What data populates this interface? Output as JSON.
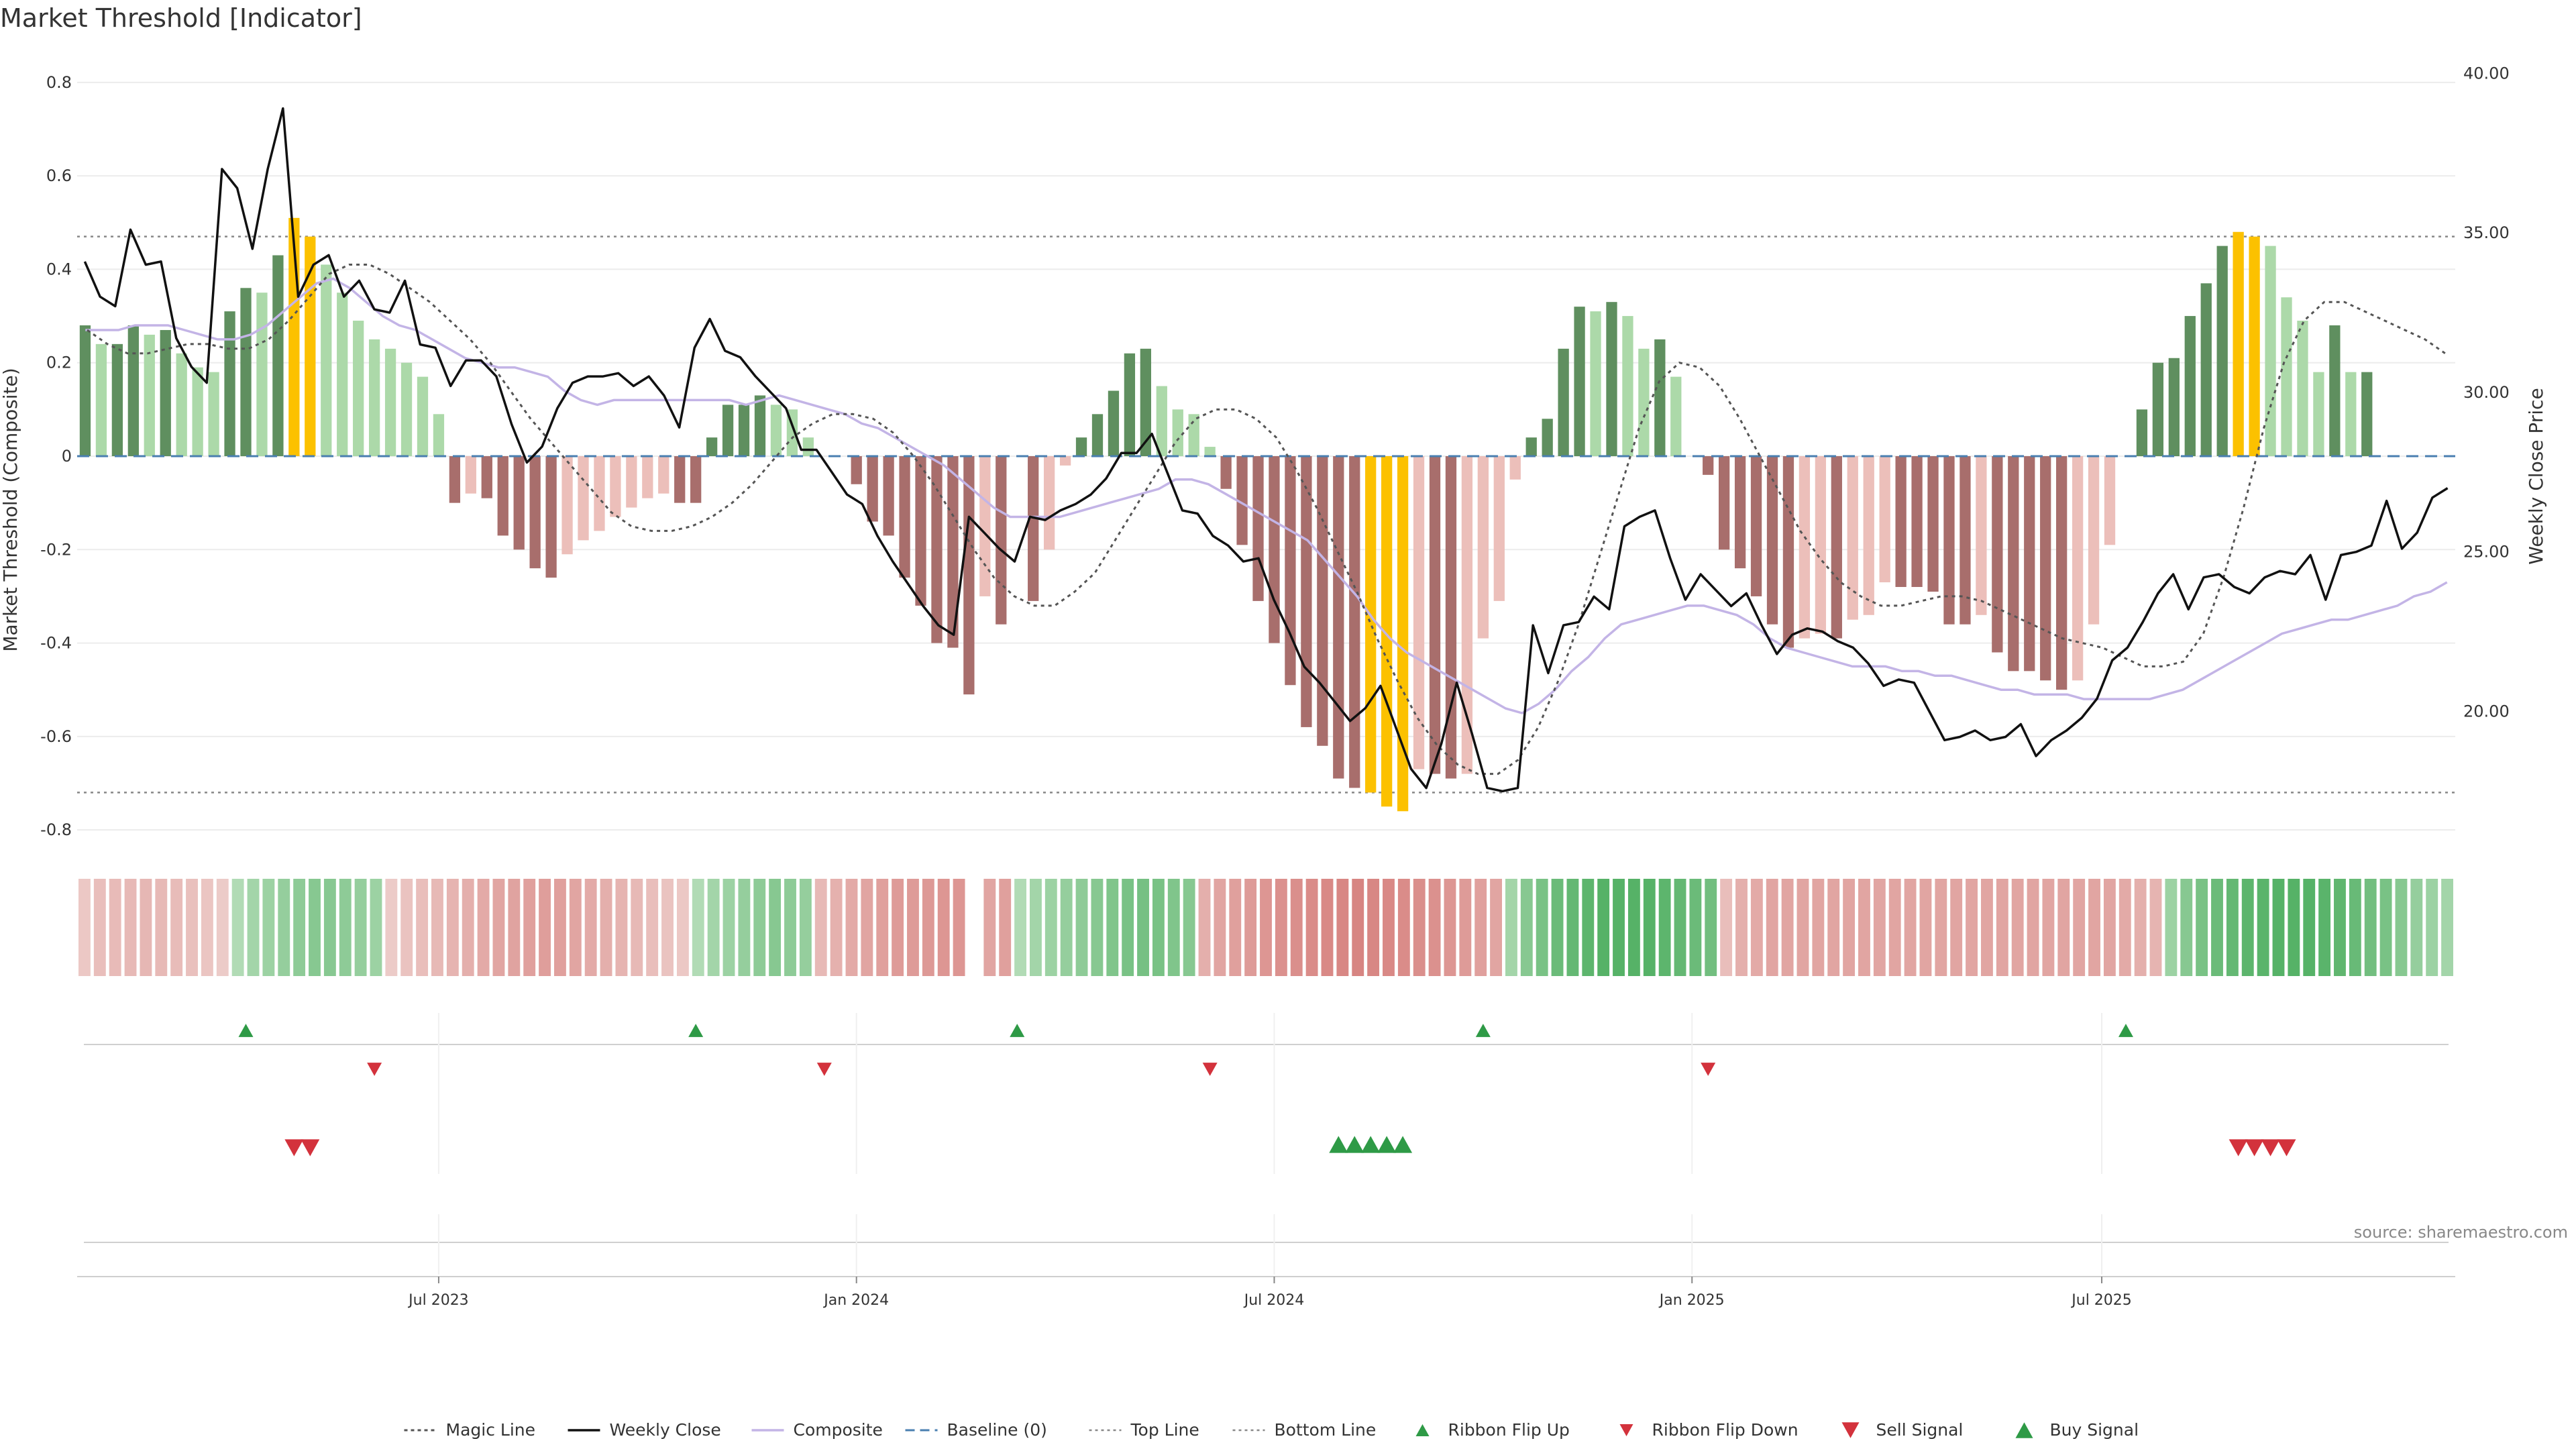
{
  "title": "Market Threshold [Indicator]",
  "source": "source: sharemaestro.com",
  "colors": {
    "strong_green": "#5f8f5f",
    "light_green": "#acd9a9",
    "strong_red": "#a86e6c",
    "light_red": "#ecbfba",
    "extreme": "#fcc100",
    "close": "#111111",
    "composite": "#c3b4e6",
    "magic": "#555555",
    "baseline": "#4a7fb0",
    "threshold": "#888888",
    "flip_up": "#2e9a46",
    "flip_down": "#d3323c"
  },
  "chart_data": {
    "type": "bar",
    "title": "Market Threshold [Indicator]",
    "ylabel": "Market Threshold (Composite)",
    "y2label": "Weekly Close Price",
    "ylim": [
      -0.84,
      0.84
    ],
    "y2lim": [
      15.7,
      40.3
    ],
    "yticks": [
      "0.8",
      "0.6",
      "0.4",
      "0.2",
      "0",
      "-0.2",
      "-0.4",
      "-0.6",
      "-0.8"
    ],
    "y2ticks": [
      "40.00",
      "35.00",
      "30.00",
      "25.00",
      "20.00"
    ],
    "xticks": [
      {
        "label": "Jul 2023",
        "week": 22
      },
      {
        "label": "Jan 2024",
        "week": 48
      },
      {
        "label": "Jul 2024",
        "week": 74
      },
      {
        "label": "Jan 2025",
        "week": 100
      },
      {
        "label": "Jul 2025",
        "week": 125.5
      }
    ],
    "top_line": 0.47,
    "bottom_line": -0.72,
    "baseline": 0,
    "bars": [
      0.28,
      0.24,
      0.24,
      0.28,
      0.26,
      0.27,
      0.22,
      0.19,
      0.18,
      0.31,
      0.36,
      0.35,
      0.43,
      0.51,
      0.47,
      0.41,
      0.35,
      0.29,
      0.25,
      0.23,
      0.2,
      0.17,
      0.09,
      -0.1,
      -0.08,
      -0.09,
      -0.17,
      -0.2,
      -0.24,
      -0.26,
      -0.21,
      -0.18,
      -0.16,
      -0.13,
      -0.11,
      -0.09,
      -0.08,
      -0.1,
      -0.1,
      0.04,
      0.11,
      0.11,
      0.13,
      0.11,
      0.1,
      0.04,
      0,
      0,
      -0.06,
      -0.14,
      -0.17,
      -0.26,
      -0.32,
      -0.4,
      -0.41,
      -0.51,
      -0.3,
      -0.36,
      0,
      -0.31,
      -0.2,
      -0.02,
      0.04,
      0.09,
      0.14,
      0.22,
      0.23,
      0.15,
      0.1,
      0.09,
      0.02,
      -0.07,
      -0.19,
      -0.31,
      -0.4,
      -0.49,
      -0.58,
      -0.62,
      -0.69,
      -0.71,
      -0.72,
      -0.75,
      -0.76,
      -0.67,
      -0.68,
      -0.69,
      -0.68,
      -0.39,
      -0.31,
      -0.05,
      0.04,
      0.08,
      0.23,
      0.32,
      0.31,
      0.33,
      0.3,
      0.23,
      0.25,
      0.17,
      0,
      -0.04,
      -0.2,
      -0.24,
      -0.3,
      -0.36,
      -0.41,
      -0.39,
      -0.38,
      -0.39,
      -0.35,
      -0.34,
      -0.27,
      -0.28,
      -0.28,
      -0.29,
      -0.36,
      -0.36,
      -0.34,
      -0.42,
      -0.46,
      -0.46,
      -0.48,
      -0.5,
      -0.48,
      -0.36,
      -0.19,
      0,
      0.1,
      0.2,
      0.21,
      0.3,
      0.37,
      0.45,
      0.48,
      0.47,
      0.45,
      0.34,
      0.29,
      0.18,
      0.28,
      0.18,
      0.18
    ],
    "close": [
      34.1,
      33.0,
      32.7,
      35.1,
      34.0,
      34.1,
      31.7,
      30.8,
      30.3,
      37.0,
      36.4,
      34.5,
      37.0,
      38.9,
      33.0,
      34.0,
      34.3,
      33.0,
      33.5,
      32.6,
      32.5,
      33.5,
      31.5,
      31.4,
      30.2,
      31.0,
      31.0,
      30.5,
      29.0,
      27.8,
      28.3,
      29.5,
      30.3,
      30.5,
      30.5,
      30.6,
      30.2,
      30.5,
      29.9,
      28.9,
      31.4,
      32.3,
      31.3,
      31.1,
      30.5,
      30.0,
      29.5,
      28.2,
      28.2,
      27.5,
      26.8,
      26.5,
      25.5,
      24.7,
      24.0,
      23.3,
      22.7,
      22.4,
      26.1,
      25.6,
      25.1,
      24.7,
      26.1,
      26.0,
      26.3,
      26.5,
      26.8,
      27.3,
      28.1,
      28.1,
      28.7,
      27.5,
      26.3,
      26.2,
      25.5,
      25.2,
      24.7,
      24.8,
      23.5,
      22.5,
      21.4,
      20.9,
      20.3,
      19.7,
      20.1,
      20.8,
      19.5,
      18.2,
      17.6,
      19.0,
      20.9,
      19.3,
      17.6,
      17.5,
      17.6,
      22.7,
      21.2,
      22.7,
      22.8,
      23.6,
      23.2,
      25.8,
      26.1,
      26.3,
      24.8,
      23.5,
      24.3,
      23.8,
      23.3,
      23.7,
      22.7,
      21.8,
      22.4,
      22.6,
      22.5,
      22.2,
      22.0,
      21.5,
      20.8,
      21.0,
      20.9,
      20.0,
      19.1,
      19.2,
      19.4,
      19.1,
      19.2,
      19.6,
      18.6,
      19.1,
      19.4,
      19.8,
      20.4,
      21.6,
      22.0,
      22.8,
      23.7,
      24.3,
      23.2,
      24.2,
      24.3,
      23.9,
      23.7,
      24.2,
      24.4,
      24.3,
      24.9,
      23.5,
      24.9,
      25.0,
      25.2,
      26.6,
      25.1,
      25.6,
      26.7,
      27.0
    ],
    "composite": [
      0.27,
      0.27,
      0.27,
      0.28,
      0.28,
      0.28,
      0.27,
      0.26,
      0.25,
      0.25,
      0.26,
      0.28,
      0.31,
      0.34,
      0.37,
      0.38,
      0.36,
      0.33,
      0.3,
      0.28,
      0.27,
      0.25,
      0.23,
      0.21,
      0.2,
      0.19,
      0.19,
      0.18,
      0.17,
      0.14,
      0.12,
      0.11,
      0.12,
      0.12,
      0.12,
      0.12,
      0.12,
      0.12,
      0.12,
      0.12,
      0.11,
      0.12,
      0.13,
      0.12,
      0.11,
      0.1,
      0.09,
      0.07,
      0.06,
      0.04,
      0.02,
      0.0,
      -0.02,
      -0.05,
      -0.08,
      -0.11,
      -0.13,
      -0.13,
      -0.13,
      -0.13,
      -0.12,
      -0.11,
      -0.1,
      -0.09,
      -0.08,
      -0.07,
      -0.05,
      -0.05,
      -0.06,
      -0.08,
      -0.1,
      -0.12,
      -0.14,
      -0.16,
      -0.18,
      -0.22,
      -0.26,
      -0.3,
      -0.35,
      -0.39,
      -0.42,
      -0.44,
      -0.46,
      -0.48,
      -0.5,
      -0.52,
      -0.54,
      -0.55,
      -0.53,
      -0.5,
      -0.46,
      -0.43,
      -0.39,
      -0.36,
      -0.35,
      -0.34,
      -0.33,
      -0.32,
      -0.32,
      -0.33,
      -0.34,
      -0.36,
      -0.39,
      -0.41,
      -0.42,
      -0.43,
      -0.44,
      -0.45,
      -0.45,
      -0.45,
      -0.46,
      -0.46,
      -0.47,
      -0.47,
      -0.48,
      -0.49,
      -0.5,
      -0.5,
      -0.51,
      -0.51,
      -0.51,
      -0.52,
      -0.52,
      -0.52,
      -0.52,
      -0.52,
      -0.51,
      -0.5,
      -0.48,
      -0.46,
      -0.44,
      -0.42,
      -0.4,
      -0.38,
      -0.37,
      -0.36,
      -0.35,
      -0.35,
      -0.34,
      -0.33,
      -0.32,
      -0.3,
      -0.29,
      -0.27
    ],
    "magic": [
      0.27,
      0.24,
      0.22,
      0.22,
      0.23,
      0.24,
      0.24,
      0.23,
      0.23,
      0.25,
      0.29,
      0.34,
      0.39,
      0.41,
      0.41,
      0.39,
      0.36,
      0.33,
      0.29,
      0.25,
      0.2,
      0.14,
      0.08,
      0.03,
      -0.02,
      -0.07,
      -0.12,
      -0.15,
      -0.16,
      -0.16,
      -0.15,
      -0.13,
      -0.1,
      -0.06,
      -0.01,
      0.04,
      0.07,
      0.09,
      0.09,
      0.08,
      0.05,
      0.0,
      -0.06,
      -0.13,
      -0.2,
      -0.26,
      -0.3,
      -0.32,
      -0.32,
      -0.29,
      -0.25,
      -0.18,
      -0.11,
      -0.04,
      0.03,
      0.08,
      0.1,
      0.1,
      0.08,
      0.04,
      -0.03,
      -0.11,
      -0.2,
      -0.29,
      -0.39,
      -0.48,
      -0.56,
      -0.62,
      -0.66,
      -0.68,
      -0.68,
      -0.65,
      -0.58,
      -0.48,
      -0.36,
      -0.22,
      -0.08,
      0.06,
      0.16,
      0.2,
      0.19,
      0.15,
      0.08,
      0.0,
      -0.08,
      -0.16,
      -0.22,
      -0.27,
      -0.3,
      -0.32,
      -0.32,
      -0.31,
      -0.3,
      -0.3,
      -0.31,
      -0.33,
      -0.35,
      -0.37,
      -0.39,
      -0.4,
      -0.41,
      -0.43,
      -0.45,
      -0.45,
      -0.44,
      -0.38,
      -0.26,
      -0.11,
      0.06,
      0.2,
      0.29,
      0.33,
      0.33,
      0.31,
      0.29,
      0.27,
      0.25,
      0.22
    ],
    "ribbon": [
      -0.15,
      -0.25,
      -0.28,
      -0.3,
      -0.32,
      -0.3,
      -0.27,
      -0.23,
      -0.18,
      -0.12,
      0.2,
      0.3,
      0.35,
      0.4,
      0.45,
      0.5,
      0.5,
      0.45,
      0.4,
      0.35,
      -0.12,
      -0.2,
      -0.25,
      -0.3,
      -0.35,
      -0.4,
      -0.45,
      -0.5,
      -0.52,
      -0.55,
      -0.57,
      -0.55,
      -0.5,
      -0.45,
      -0.4,
      -0.35,
      -0.3,
      -0.25,
      -0.2,
      -0.15,
      0.2,
      0.3,
      0.35,
      0.4,
      0.45,
      0.5,
      0.45,
      0.4,
      -0.3,
      -0.38,
      -0.45,
      -0.5,
      -0.55,
      -0.6,
      -0.6,
      -0.62,
      -0.65,
      -0.65,
      null,
      -0.5,
      -0.55,
      0.2,
      0.3,
      0.35,
      0.4,
      0.45,
      0.5,
      0.55,
      0.6,
      0.62,
      0.6,
      0.55,
      0.5,
      -0.4,
      -0.5,
      -0.55,
      -0.6,
      -0.65,
      -0.7,
      -0.72,
      -0.75,
      -0.78,
      -0.8,
      -0.82,
      -0.8,
      -0.78,
      -0.75,
      -0.72,
      -0.7,
      -0.65,
      -0.6,
      -0.55,
      -0.5,
      0.3,
      0.5,
      0.6,
      0.7,
      0.75,
      0.8,
      0.85,
      0.85,
      0.85,
      0.85,
      0.8,
      0.75,
      0.7,
      0.65,
      -0.25,
      -0.4,
      -0.45,
      -0.5,
      -0.5,
      -0.5,
      -0.5,
      -0.5,
      -0.5,
      -0.5,
      -0.5,
      -0.5,
      -0.5,
      -0.5,
      -0.5,
      -0.5,
      -0.5,
      -0.5,
      -0.5,
      -0.5,
      -0.5,
      -0.5,
      -0.5,
      -0.5,
      -0.5,
      -0.5,
      -0.45,
      -0.4,
      -0.35,
      0.35,
      0.5,
      0.6,
      0.7,
      0.75,
      0.8,
      0.82,
      0.85,
      0.85,
      0.85,
      0.82,
      0.78,
      0.72,
      0.65,
      0.6,
      0.5,
      0.4,
      0.35,
      0.3
    ],
    "ribbon_flip_up": [
      10,
      38,
      58,
      87,
      127
    ],
    "ribbon_flip_down": [
      18,
      46,
      70,
      101
    ],
    "sell_signal": [
      13,
      14,
      134,
      135,
      136,
      137
    ],
    "buy_signal": [
      78,
      79,
      80,
      81,
      82
    ],
    "legend": [
      {
        "label": "Magic Line",
        "kind": "dotted"
      },
      {
        "label": "Weekly Close",
        "kind": "solid"
      },
      {
        "label": "Composite",
        "kind": "composite"
      },
      {
        "label": "Baseline (0)",
        "kind": "dashed"
      },
      {
        "label": "Top Line",
        "kind": "thin-dotted"
      },
      {
        "label": "Bottom Line",
        "kind": "thin-dotted"
      },
      {
        "label": "Ribbon Flip Up",
        "kind": "tri-up"
      },
      {
        "label": "Ribbon Flip Down",
        "kind": "tri-down"
      },
      {
        "label": "Sell Signal",
        "kind": "tri-down-big"
      },
      {
        "label": "Buy Signal",
        "kind": "tri-up-big"
      }
    ]
  }
}
